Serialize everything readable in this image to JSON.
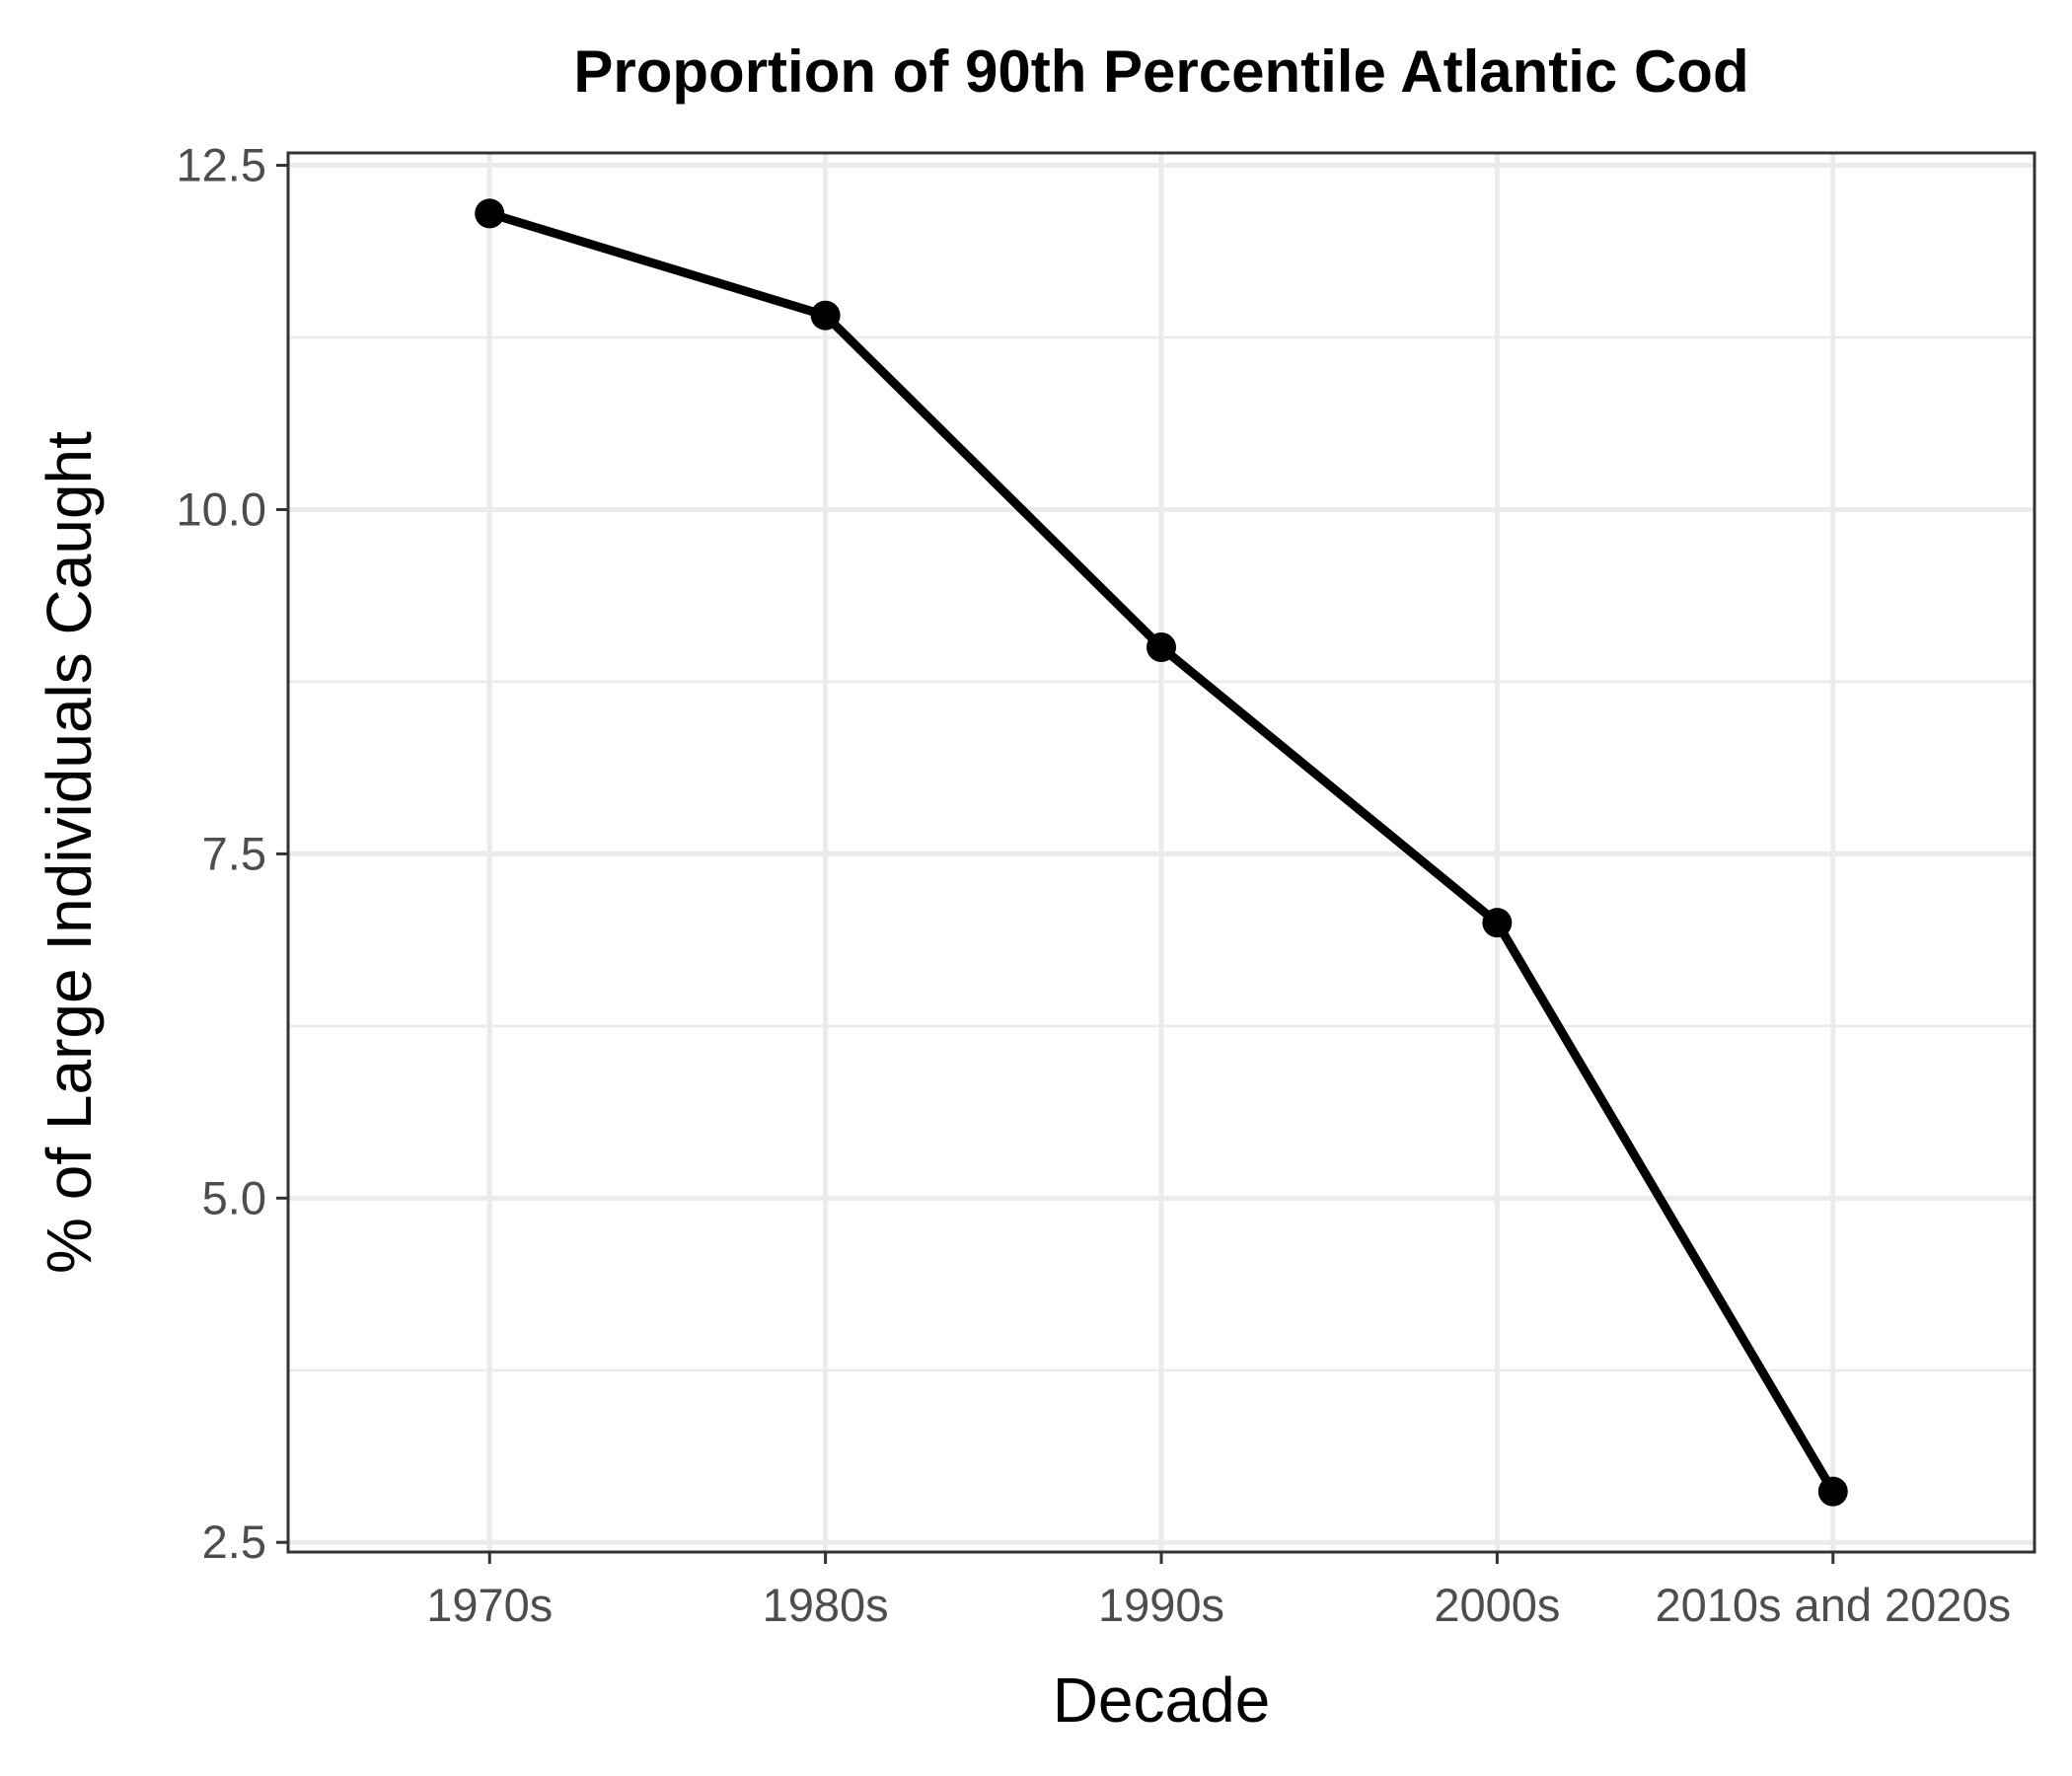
{
  "chart_data": {
    "type": "line",
    "title": "Proportion of 90th Percentile Atlantic Cod",
    "xlabel": "Decade",
    "ylabel": "% of Large Individuals Caught",
    "categories": [
      "1970s",
      "1980s",
      "1990s",
      "2000s",
      "2010s and 2020s"
    ],
    "series": [
      {
        "values": [
          12.15,
          11.41,
          9.0,
          7.0,
          2.87
        ]
      }
    ],
    "yticks": [
      "2.5",
      "5.0",
      "7.5",
      "10.0",
      "12.5"
    ],
    "ylim": [
      2.43,
      12.59
    ],
    "grid": true,
    "legend": "none",
    "colors": {
      "line": "#000000",
      "grid": "#ebebeb",
      "panel_border": "#333333",
      "tick_text": "#4d4d4d"
    }
  }
}
